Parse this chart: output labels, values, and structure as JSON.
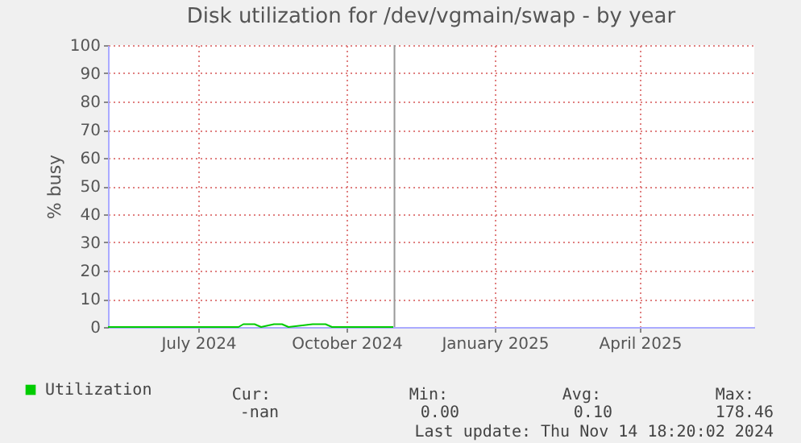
{
  "chart_data": {
    "type": "line",
    "title": "Disk utilization for /dev/vgmain/swap - by year",
    "ylabel": "% busy",
    "x": [
      "2024-05-21",
      "2024-06-15",
      "2024-07-15",
      "2024-08-10",
      "2024-08-13",
      "2024-08-20",
      "2024-08-24",
      "2024-09-01",
      "2024-09-06",
      "2024-09-10",
      "2024-09-25",
      "2024-10-03",
      "2024-10-07",
      "2024-11-14"
    ],
    "series": [
      {
        "name": "Utilization",
        "color": "#00cc00",
        "values": [
          0,
          0,
          0,
          0,
          1,
          1,
          0,
          1,
          1,
          0,
          1,
          1,
          0,
          0
        ]
      }
    ],
    "xlim": [
      "2024-05-21",
      "2025-06-26"
    ],
    "xticks": [
      {
        "value": "2024-07-16",
        "label": "July 2024"
      },
      {
        "value": "2024-10-16",
        "label": "October 2024"
      },
      {
        "value": "2025-01-16",
        "label": "January 2025"
      },
      {
        "value": "2025-04-16",
        "label": "April 2025"
      }
    ],
    "ylim": [
      0,
      100
    ],
    "yticks": [
      0,
      10,
      20,
      30,
      40,
      50,
      60,
      70,
      80,
      90,
      100
    ],
    "grid": true,
    "legend": "bottom left",
    "ref_lines": [
      {
        "axis": "x",
        "value": "2024-11-14T18:20",
        "color": "#999999"
      }
    ],
    "annotations": [
      "Cur:",
      "Min:",
      "Avg:",
      "Max:",
      "-nan",
      "0.00",
      "0.10",
      "178.46",
      "Last update: Thu Nov 14 18:20:02 2024"
    ]
  }
}
